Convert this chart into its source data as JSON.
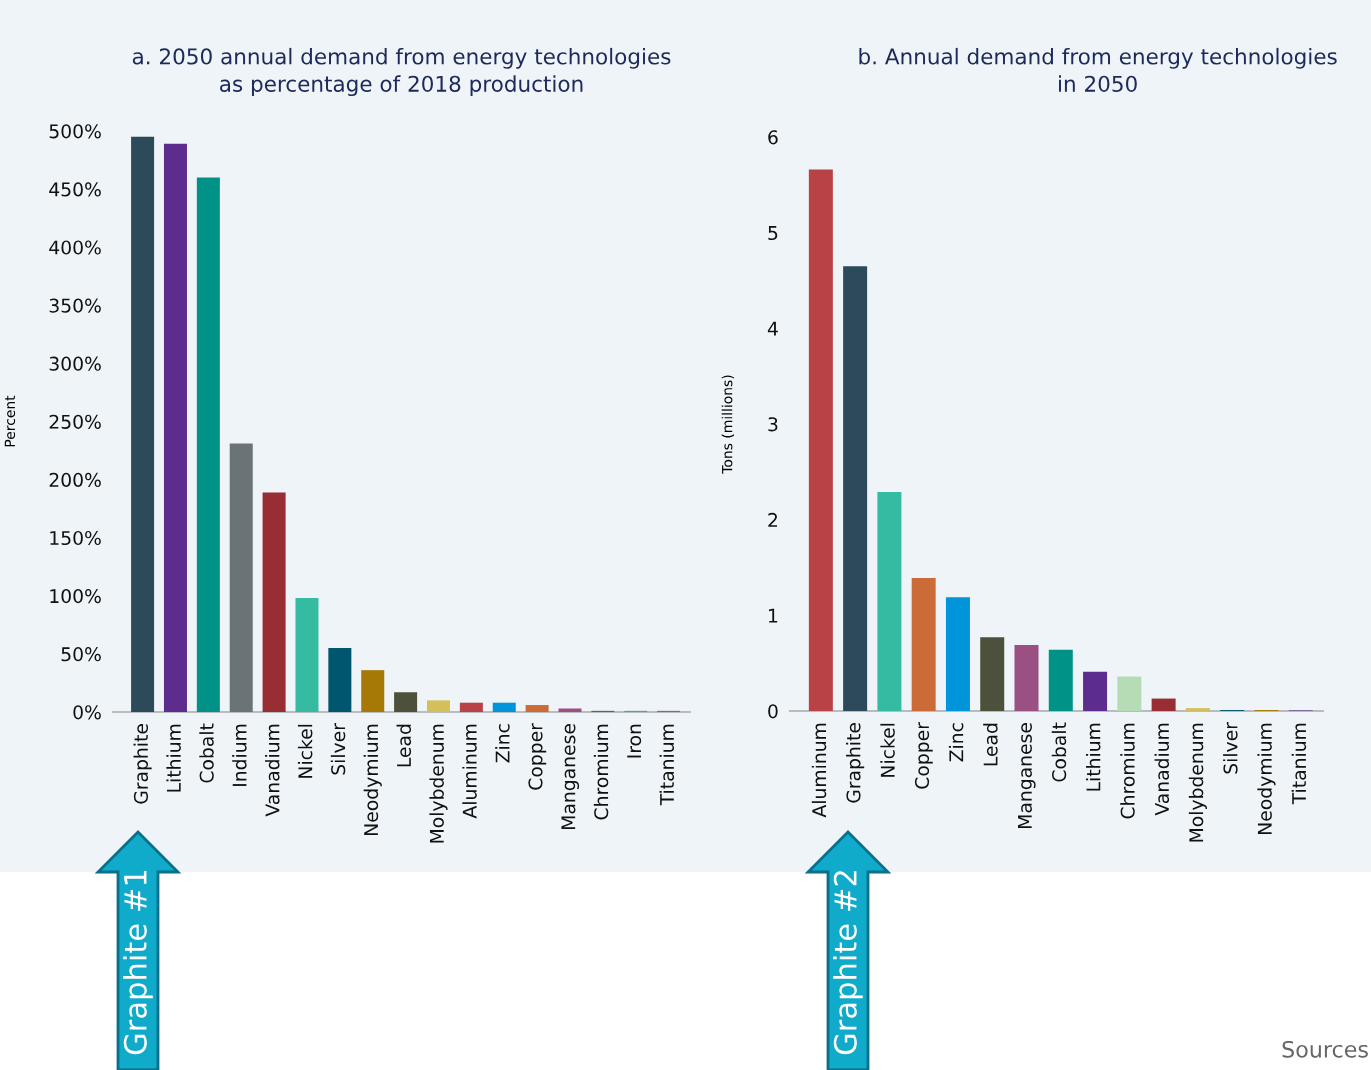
{
  "chart_data": [
    {
      "type": "bar",
      "title": "a. 2050 annual demand from energy technologies\nas percentage of 2018 production",
      "ylabel": "Percent",
      "categories": [
        "Graphite",
        "Lithium",
        "Cobalt",
        "Indium",
        "Vanadium",
        "Nickel",
        "Silver",
        "Neodymium",
        "Lead",
        "Molybdenum",
        "Aluminum",
        "Zinc",
        "Copper",
        "Manganese",
        "Chromium",
        "Iron",
        "Titanium"
      ],
      "values": [
        495,
        489,
        460,
        231,
        189,
        98,
        55,
        36,
        17,
        10,
        8,
        8,
        6,
        3,
        1,
        1,
        1
      ],
      "colors": [
        "#2c4a5a",
        "#5c2d8c",
        "#009187",
        "#6a7377",
        "#982d34",
        "#36bba3",
        "#00566f",
        "#a67907",
        "#4d513b",
        "#d4bf5a",
        "#b94246",
        "#0095da",
        "#cb6c38",
        "#9a5083",
        "#1f73b5",
        "#3aa5d3",
        "#7a6a9a"
      ],
      "ylim": [
        0,
        500
      ],
      "yticks": [
        {
          "value": 0,
          "label": "0%"
        },
        {
          "value": 50,
          "label": "50%"
        },
        {
          "value": 100,
          "label": "100%"
        },
        {
          "value": 150,
          "label": "150%"
        },
        {
          "value": 200,
          "label": "200%"
        },
        {
          "value": 250,
          "label": "250%"
        },
        {
          "value": 300,
          "label": "300%"
        },
        {
          "value": 350,
          "label": "350%"
        },
        {
          "value": 400,
          "label": "400%"
        },
        {
          "value": 450,
          "label": "450%"
        },
        {
          "value": 500,
          "label": "500%"
        }
      ],
      "grid": false,
      "legend": false,
      "annotations": [
        "Graphite #1"
      ]
    },
    {
      "type": "bar",
      "title": "b. Annual demand from energy technologies\nin 2050",
      "ylabel": "Tons (millions)",
      "categories": [
        "Aluminum",
        "Graphite",
        "Nickel",
        "Copper",
        "Zinc",
        "Lead",
        "Manganese",
        "Cobalt",
        "Lithium",
        "Chromium",
        "Vanadium",
        "Molybdenum",
        "Silver",
        "Neodymium",
        "Titanium"
      ],
      "values": [
        5.66,
        4.65,
        2.29,
        1.39,
        1.19,
        0.77,
        0.69,
        0.64,
        0.41,
        0.36,
        0.13,
        0.03,
        0.01,
        0.01,
        0.01
      ],
      "colors": [
        "#b94246",
        "#2c4a5a",
        "#36bba3",
        "#cb6c38",
        "#0095da",
        "#4d513b",
        "#9a5083",
        "#009187",
        "#5c2d8c",
        "#b5dcb5",
        "#982d34",
        "#d4bf5a",
        "#00566f",
        "#a67907",
        "#7a6a9a"
      ],
      "ylim": [
        0,
        6
      ],
      "yticks": [
        0,
        1,
        2,
        3,
        4,
        5,
        6
      ],
      "grid": false,
      "legend": false,
      "annotations": [
        "Graphite #2",
        "Sources"
      ]
    }
  ]
}
